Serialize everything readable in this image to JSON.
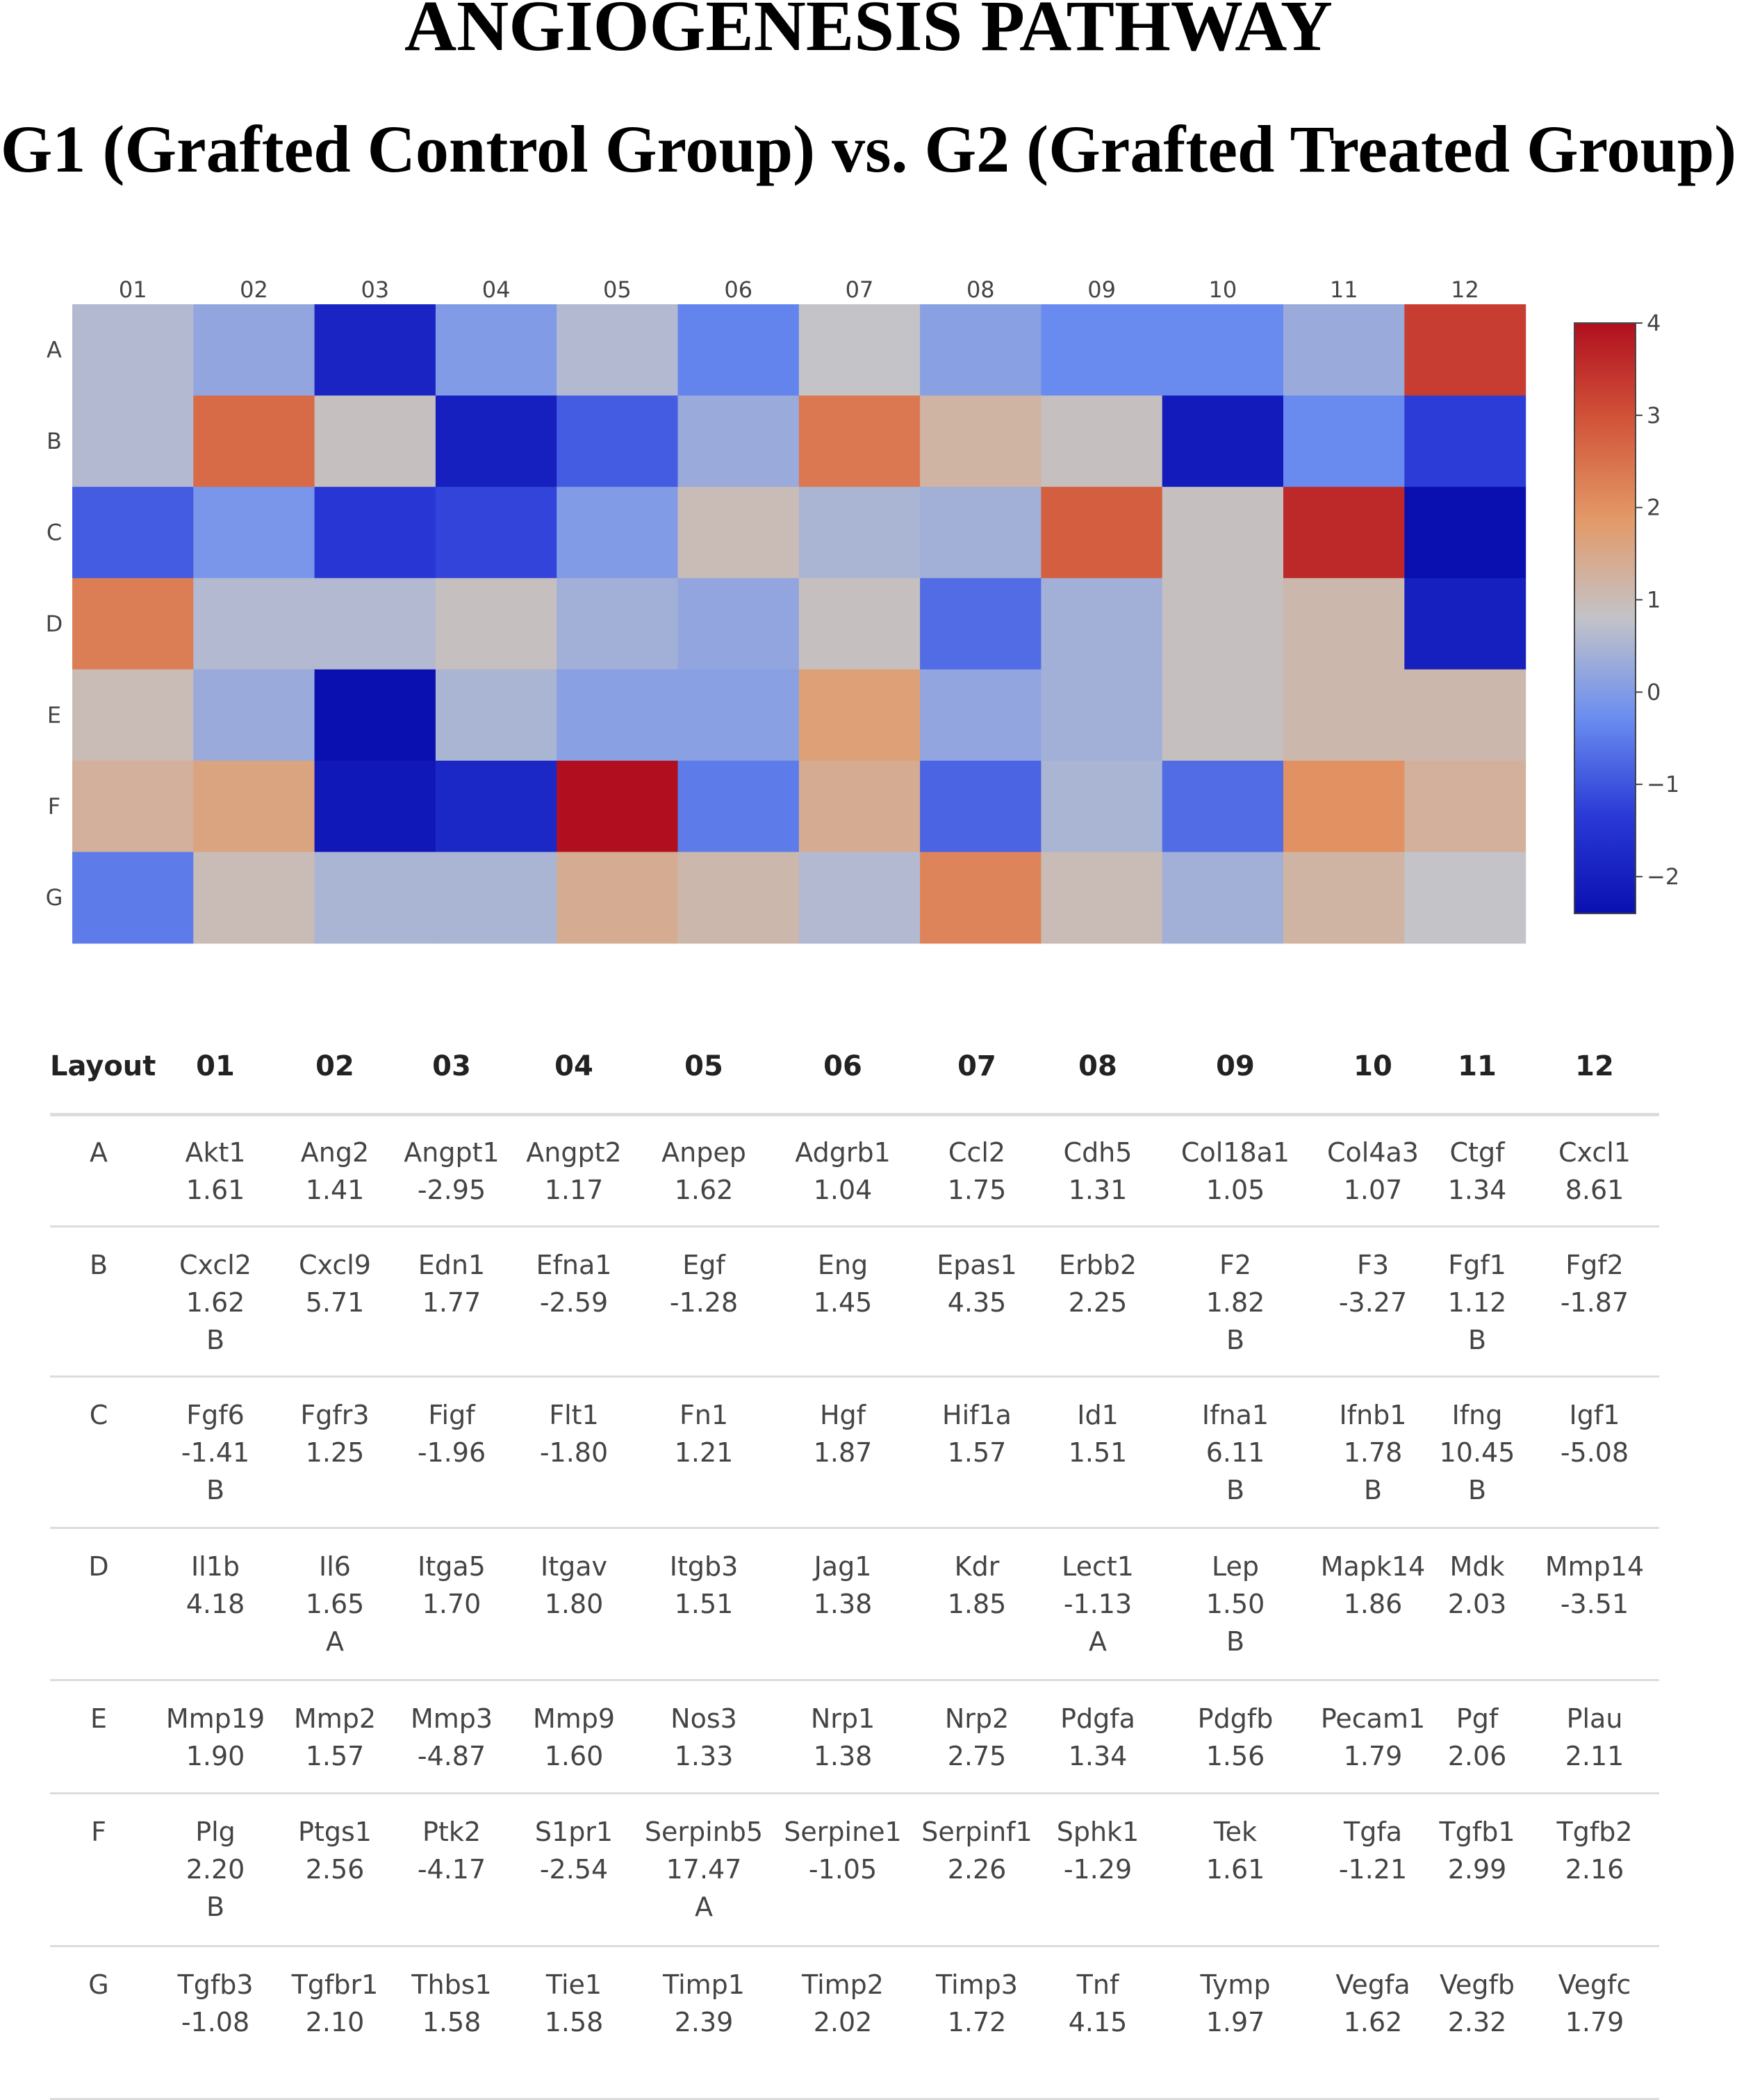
{
  "title": "ANGIOGENESIS PATHWAY",
  "subtitle": "G1 (Grafted Control Group) vs. G2 (Grafted Treated Group)",
  "chart_data": {
    "type": "heatmap",
    "columns": [
      "01",
      "02",
      "03",
      "04",
      "05",
      "06",
      "07",
      "08",
      "09",
      "10",
      "11",
      "12"
    ],
    "rows": [
      "A",
      "B",
      "C",
      "D",
      "E",
      "F",
      "G"
    ],
    "values": [
      [
        0.6,
        0.2,
        -1.9,
        0.0,
        0.6,
        -0.4,
        0.8,
        0.1,
        -0.3,
        -0.3,
        0.3,
        3.3
      ],
      [
        0.6,
        2.6,
        0.9,
        -2.0,
        -0.9,
        0.3,
        2.4,
        1.2,
        0.9,
        -2.1,
        -0.3,
        -1.3
      ],
      [
        -0.9,
        -0.1,
        -1.4,
        -1.2,
        0.0,
        1.0,
        0.5,
        0.4,
        2.8,
        0.9,
        3.6,
        -2.4
      ],
      [
        2.3,
        0.6,
        0.6,
        0.9,
        0.4,
        0.2,
        0.9,
        -0.7,
        0.4,
        0.9,
        1.1,
        -2.0
      ],
      [
        1.0,
        0.3,
        -2.4,
        0.5,
        0.1,
        0.1,
        1.7,
        0.2,
        0.4,
        0.9,
        1.1,
        1.1
      ],
      [
        1.3,
        1.6,
        -2.2,
        -1.8,
        4.0,
        -0.5,
        1.4,
        -0.8,
        0.5,
        -0.7,
        2.0,
        1.3
      ],
      [
        -0.5,
        1.0,
        0.5,
        0.5,
        1.4,
        1.1,
        0.6,
        2.2,
        1.0,
        0.4,
        1.2,
        0.8
      ]
    ],
    "zlim": [
      -2.4,
      4.0
    ],
    "colorbar_ticks": [
      4,
      3,
      2,
      1,
      0,
      -1,
      -2
    ],
    "colorscale": [
      "#0a10b0",
      "#2a3ad6",
      "#6b8ef0",
      "#c3c3c8",
      "#e39a68",
      "#d2553a",
      "#b10f1f"
    ]
  },
  "layout_table": {
    "header_label": "Layout",
    "columns": [
      "01",
      "02",
      "03",
      "04",
      "05",
      "06",
      "07",
      "08",
      "09",
      "10",
      "11",
      "12"
    ],
    "rows": [
      {
        "label": "A",
        "cells": [
          {
            "gene": "Akt1",
            "value": "1.61",
            "note": ""
          },
          {
            "gene": "Ang2",
            "value": "1.41",
            "note": ""
          },
          {
            "gene": "Angpt1",
            "value": "-2.95",
            "note": ""
          },
          {
            "gene": "Angpt2",
            "value": "1.17",
            "note": ""
          },
          {
            "gene": "Anpep",
            "value": "1.62",
            "note": ""
          },
          {
            "gene": "Adgrb1",
            "value": "1.04",
            "note": ""
          },
          {
            "gene": "Ccl2",
            "value": "1.75",
            "note": ""
          },
          {
            "gene": "Cdh5",
            "value": "1.31",
            "note": ""
          },
          {
            "gene": "Col18a1",
            "value": "1.05",
            "note": ""
          },
          {
            "gene": "Col4a3",
            "value": "1.07",
            "note": ""
          },
          {
            "gene": "Ctgf",
            "value": "1.34",
            "note": ""
          },
          {
            "gene": "Cxcl1",
            "value": "8.61",
            "note": ""
          }
        ]
      },
      {
        "label": "B",
        "cells": [
          {
            "gene": "Cxcl2",
            "value": "1.62",
            "note": "B"
          },
          {
            "gene": "Cxcl9",
            "value": "5.71",
            "note": ""
          },
          {
            "gene": "Edn1",
            "value": "1.77",
            "note": ""
          },
          {
            "gene": "Efna1",
            "value": "-2.59",
            "note": ""
          },
          {
            "gene": "Egf",
            "value": "-1.28",
            "note": ""
          },
          {
            "gene": "Eng",
            "value": "1.45",
            "note": ""
          },
          {
            "gene": "Epas1",
            "value": "4.35",
            "note": ""
          },
          {
            "gene": "Erbb2",
            "value": "2.25",
            "note": ""
          },
          {
            "gene": "F2",
            "value": "1.82",
            "note": "B"
          },
          {
            "gene": "F3",
            "value": "-3.27",
            "note": ""
          },
          {
            "gene": "Fgf1",
            "value": "1.12",
            "note": "B"
          },
          {
            "gene": "Fgf2",
            "value": "-1.87",
            "note": ""
          }
        ]
      },
      {
        "label": "C",
        "cells": [
          {
            "gene": "Fgf6",
            "value": "-1.41",
            "note": "B"
          },
          {
            "gene": "Fgfr3",
            "value": "1.25",
            "note": ""
          },
          {
            "gene": "Figf",
            "value": "-1.96",
            "note": ""
          },
          {
            "gene": "Flt1",
            "value": "-1.80",
            "note": ""
          },
          {
            "gene": "Fn1",
            "value": "1.21",
            "note": ""
          },
          {
            "gene": "Hgf",
            "value": "1.87",
            "note": ""
          },
          {
            "gene": "Hif1a",
            "value": "1.57",
            "note": ""
          },
          {
            "gene": "Id1",
            "value": "1.51",
            "note": ""
          },
          {
            "gene": "Ifna1",
            "value": "6.11",
            "note": "B"
          },
          {
            "gene": "Ifnb1",
            "value": "1.78",
            "note": "B"
          },
          {
            "gene": "Ifng",
            "value": "10.45",
            "note": "B"
          },
          {
            "gene": "Igf1",
            "value": "-5.08",
            "note": ""
          }
        ]
      },
      {
        "label": "D",
        "cells": [
          {
            "gene": "Il1b",
            "value": "4.18",
            "note": ""
          },
          {
            "gene": "Il6",
            "value": "1.65",
            "note": "A"
          },
          {
            "gene": "Itga5",
            "value": "1.70",
            "note": ""
          },
          {
            "gene": "Itgav",
            "value": "1.80",
            "note": ""
          },
          {
            "gene": "Itgb3",
            "value": "1.51",
            "note": ""
          },
          {
            "gene": "Jag1",
            "value": "1.38",
            "note": ""
          },
          {
            "gene": "Kdr",
            "value": "1.85",
            "note": ""
          },
          {
            "gene": "Lect1",
            "value": "-1.13",
            "note": "A"
          },
          {
            "gene": "Lep",
            "value": "1.50",
            "note": "B"
          },
          {
            "gene": "Mapk14",
            "value": "1.86",
            "note": ""
          },
          {
            "gene": "Mdk",
            "value": "2.03",
            "note": ""
          },
          {
            "gene": "Mmp14",
            "value": "-3.51",
            "note": ""
          }
        ]
      },
      {
        "label": "E",
        "cells": [
          {
            "gene": "Mmp19",
            "value": "1.90",
            "note": ""
          },
          {
            "gene": "Mmp2",
            "value": "1.57",
            "note": ""
          },
          {
            "gene": "Mmp3",
            "value": "-4.87",
            "note": ""
          },
          {
            "gene": "Mmp9",
            "value": "1.60",
            "note": ""
          },
          {
            "gene": "Nos3",
            "value": "1.33",
            "note": ""
          },
          {
            "gene": "Nrp1",
            "value": "1.38",
            "note": ""
          },
          {
            "gene": "Nrp2",
            "value": "2.75",
            "note": ""
          },
          {
            "gene": "Pdgfa",
            "value": "1.34",
            "note": ""
          },
          {
            "gene": "Pdgfb",
            "value": "1.56",
            "note": ""
          },
          {
            "gene": "Pecam1",
            "value": "1.79",
            "note": ""
          },
          {
            "gene": "Pgf",
            "value": "2.06",
            "note": ""
          },
          {
            "gene": "Plau",
            "value": "2.11",
            "note": ""
          }
        ]
      },
      {
        "label": "F",
        "cells": [
          {
            "gene": "Plg",
            "value": "2.20",
            "note": "B"
          },
          {
            "gene": "Ptgs1",
            "value": "2.56",
            "note": ""
          },
          {
            "gene": "Ptk2",
            "value": "-4.17",
            "note": ""
          },
          {
            "gene": "S1pr1",
            "value": "-2.54",
            "note": ""
          },
          {
            "gene": "Serpinb5",
            "value": "17.47",
            "note": "A"
          },
          {
            "gene": "Serpine1",
            "value": "-1.05",
            "note": ""
          },
          {
            "gene": "Serpinf1",
            "value": "2.26",
            "note": ""
          },
          {
            "gene": "Sphk1",
            "value": "-1.29",
            "note": ""
          },
          {
            "gene": "Tek",
            "value": "1.61",
            "note": ""
          },
          {
            "gene": "Tgfa",
            "value": "-1.21",
            "note": ""
          },
          {
            "gene": "Tgfb1",
            "value": "2.99",
            "note": ""
          },
          {
            "gene": "Tgfb2",
            "value": "2.16",
            "note": ""
          }
        ]
      },
      {
        "label": "G",
        "cells": [
          {
            "gene": "Tgfb3",
            "value": "-1.08",
            "note": ""
          },
          {
            "gene": "Tgfbr1",
            "value": "2.10",
            "note": ""
          },
          {
            "gene": "Thbs1",
            "value": "1.58",
            "note": ""
          },
          {
            "gene": "Tie1",
            "value": "1.58",
            "note": ""
          },
          {
            "gene": "Timp1",
            "value": "2.39",
            "note": ""
          },
          {
            "gene": "Timp2",
            "value": "2.02",
            "note": ""
          },
          {
            "gene": "Timp3",
            "value": "1.72",
            "note": ""
          },
          {
            "gene": "Tnf",
            "value": "4.15",
            "note": ""
          },
          {
            "gene": "Tymp",
            "value": "1.97",
            "note": ""
          },
          {
            "gene": "Vegfa",
            "value": "1.62",
            "note": ""
          },
          {
            "gene": "Vegfb",
            "value": "2.32",
            "note": ""
          },
          {
            "gene": "Vegfc",
            "value": "1.79",
            "note": ""
          }
        ]
      }
    ]
  }
}
